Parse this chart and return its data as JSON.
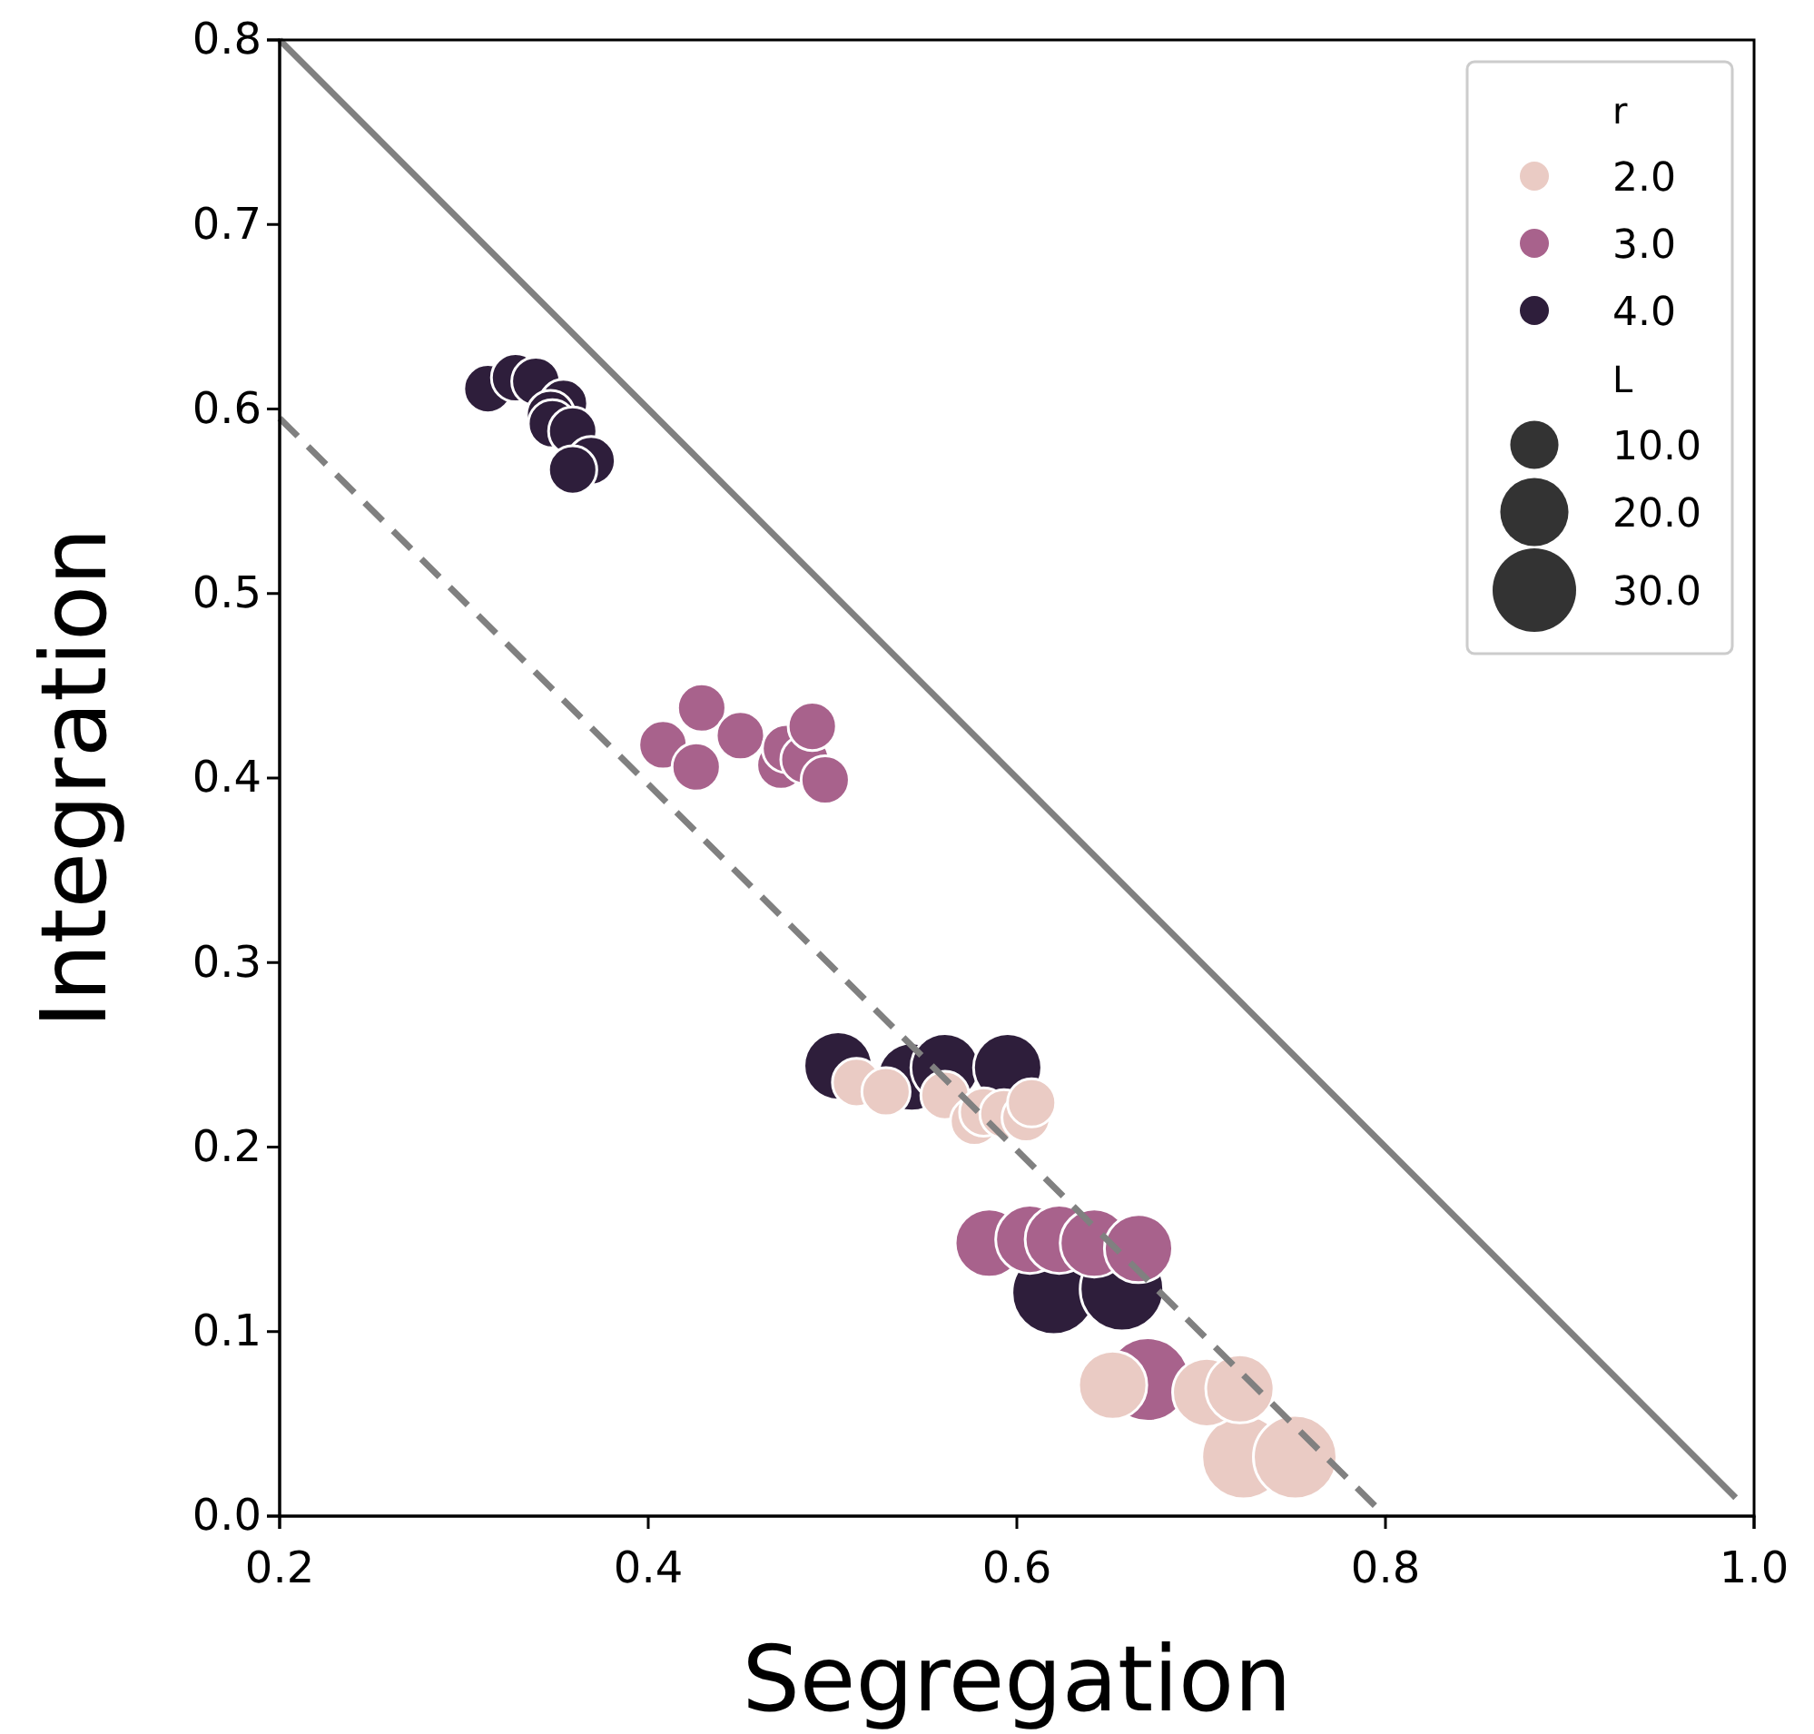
{
  "chart_data": {
    "type": "bubble",
    "xlabel": "Segregation",
    "ylabel": "Integration",
    "xlim": [
      0.2,
      1.0
    ],
    "ylim": [
      0,
      0.8
    ],
    "xticks": [
      0.2,
      0.4,
      0.6,
      0.8,
      {
        "value": 1.0,
        "label": "1.0"
      }
    ],
    "yticks": [
      {
        "value": 0,
        "label": "0.0"
      },
      0.1,
      0.2,
      0.3,
      0.4,
      0.5,
      0.6,
      0.7,
      0.8
    ],
    "legend": "top right",
    "legend_title": "r",
    "annotations": [
      "L"
    ],
    "size_legend": [
      {
        "value": 10,
        "label": "10.0"
      },
      {
        "value": 20,
        "label": "20.0"
      },
      {
        "value": 30,
        "label": "30.0"
      }
    ],
    "series": [
      {
        "name": "2.0",
        "color": "#eacbc4",
        "x": [
          0.513,
          0.529,
          0.561,
          0.577,
          0.582,
          0.593,
          0.605,
          0.608,
          0.652,
          0.703,
          0.721,
          0.723,
          0.751
        ],
        "values": [
          0.235,
          0.23,
          0.228,
          0.214,
          0.219,
          0.218,
          0.216,
          0.224,
          0.071,
          0.067,
          0.069,
          0.032,
          0.032
        ],
        "sizes": [
          10,
          10,
          10,
          10,
          10,
          10,
          10,
          10,
          20,
          20,
          20,
          30,
          30
        ]
      },
      {
        "name": "3.0",
        "color": "#a8628c",
        "x": [
          0.408,
          0.429,
          0.426,
          0.45,
          0.472,
          0.475,
          0.485,
          0.489,
          0.496,
          0.585,
          0.607,
          0.623,
          0.642,
          0.666,
          0.671
        ],
        "values": [
          0.418,
          0.438,
          0.406,
          0.423,
          0.407,
          0.416,
          0.41,
          0.428,
          0.399,
          0.148,
          0.15,
          0.15,
          0.148,
          0.145,
          0.074
        ],
        "sizes": [
          10,
          10,
          10,
          10,
          10,
          10,
          10,
          10,
          10,
          20,
          20,
          20,
          20,
          20,
          30
        ]
      },
      {
        "name": "4.0",
        "color": "#2e1e3b",
        "x": [
          0.313,
          0.328,
          0.339,
          0.354,
          0.347,
          0.348,
          0.359,
          0.369,
          0.359,
          0.503,
          0.543,
          0.561,
          0.595,
          0.62,
          0.657
        ],
        "values": [
          0.611,
          0.617,
          0.615,
          0.603,
          0.597,
          0.592,
          0.588,
          0.572,
          0.567,
          0.244,
          0.238,
          0.243,
          0.243,
          0.121,
          0.123
        ],
        "sizes": [
          10,
          10,
          10,
          10,
          10,
          10,
          10,
          10,
          10,
          20,
          20,
          20,
          20,
          30,
          30
        ]
      },
      {
        "type": "line",
        "color": "#808080",
        "line_style": "solid",
        "x": [
          0.2,
          0.99
        ],
        "values": [
          0.8,
          0.01
        ]
      },
      {
        "type": "line",
        "color": "#808080",
        "line_style": "dashed",
        "x": [
          0.2,
          0.8
        ],
        "values": [
          0.595,
          0
        ]
      }
    ]
  }
}
